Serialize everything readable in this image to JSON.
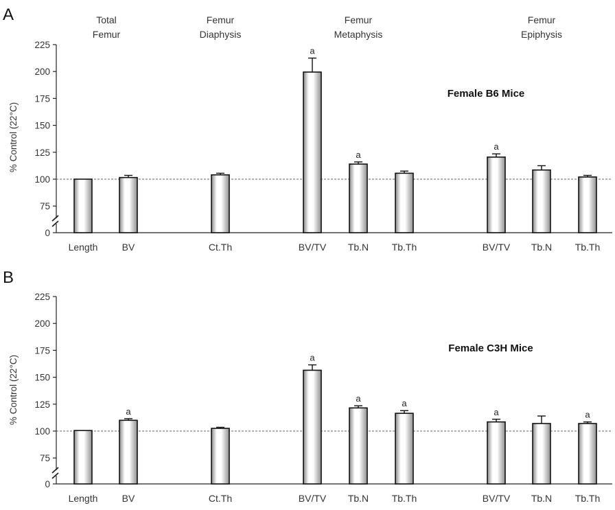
{
  "chart_data": [
    {
      "panel": "A",
      "type": "bar",
      "group_labels": [
        {
          "line1": "Total",
          "line2": "Femur"
        },
        {
          "line1": "Femur",
          "line2": "Diaphysis"
        },
        {
          "line1": "Femur",
          "line2": "Metaphysis"
        },
        {
          "line1": "Femur",
          "line2": "Epiphysis"
        }
      ],
      "categories": [
        "Length",
        "BV",
        "Ct.Th",
        "BV/TV",
        "Tb.N",
        "Tb.Th",
        "BV/TV",
        "Tb.N",
        "Tb.Th"
      ],
      "values": [
        100,
        101.5,
        104,
        199.5,
        114,
        105.5,
        120.5,
        108.5,
        102
      ],
      "errors": [
        0.5,
        2,
        1.5,
        13,
        2,
        2,
        3,
        4,
        1.5
      ],
      "annotations": [
        "",
        "",
        "",
        "a",
        "a",
        "",
        "a",
        "",
        ""
      ],
      "strain_label": "Female B6 Mice",
      "ylabel": "% Control (22°C)",
      "yticks": [
        0,
        75,
        100,
        125,
        150,
        175,
        200,
        225
      ],
      "ylim": [
        0,
        225
      ],
      "reference_line": 100
    },
    {
      "panel": "B",
      "type": "bar",
      "group_labels": [],
      "categories": [
        "Length",
        "BV",
        "Ct.Th",
        "BV/TV",
        "Tb.N",
        "Tb.Th",
        "BV/TV",
        "Tb.N",
        "Tb.Th"
      ],
      "values": [
        100.5,
        110,
        102.5,
        156.5,
        121.5,
        116.5,
        108.5,
        107,
        107
      ],
      "errors": [
        0.5,
        1.5,
        1,
        5,
        2,
        2.5,
        2.5,
        7,
        1.5
      ],
      "annotations": [
        "",
        "a",
        "",
        "a",
        "a",
        "a",
        "a",
        "",
        "a"
      ],
      "strain_label": "Female C3H Mice",
      "ylabel": "% Control (22°C)",
      "yticks": [
        0,
        75,
        100,
        125,
        150,
        175,
        200,
        225
      ],
      "ylim": [
        0,
        225
      ],
      "reference_line": 100
    }
  ]
}
